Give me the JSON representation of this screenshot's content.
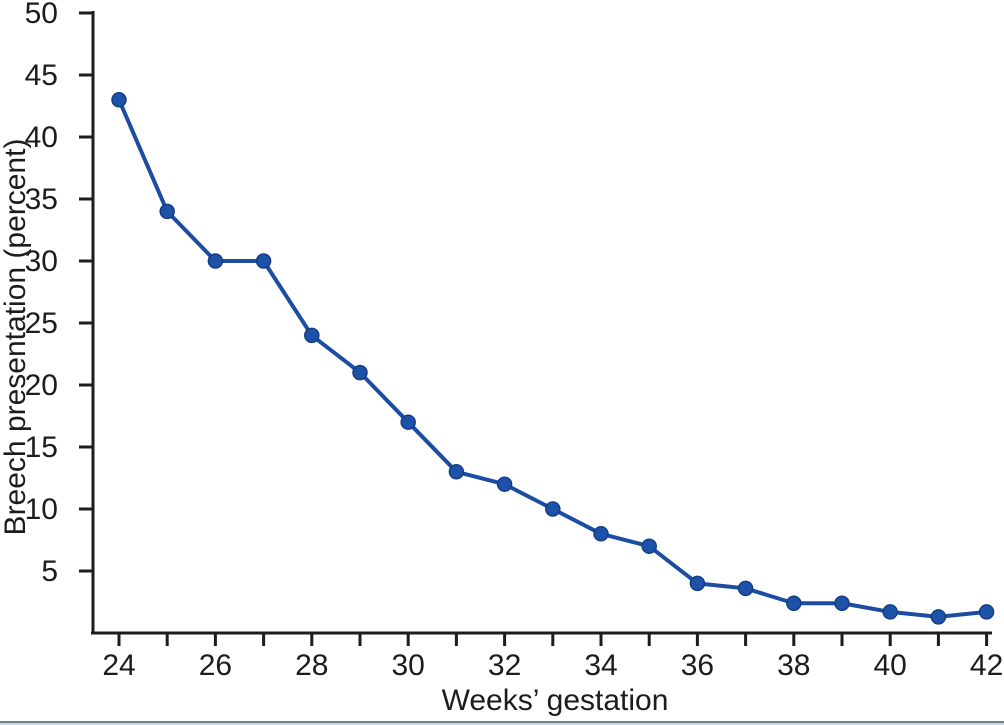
{
  "chart_data": {
    "type": "line",
    "title": "",
    "xlabel": "Weeks’ gestation",
    "ylabel": "Breech presentation (percent)",
    "x": [
      24,
      25,
      26,
      27,
      28,
      29,
      30,
      31,
      32,
      33,
      34,
      35,
      36,
      37,
      38,
      39,
      40,
      41,
      42
    ],
    "values": [
      43,
      34,
      30,
      30,
      24,
      21,
      17,
      13,
      12,
      10,
      8,
      7,
      4,
      3.6,
      2.4,
      2.4,
      1.7,
      1.3,
      1.7
    ],
    "xlim": [
      24,
      42
    ],
    "ylim": [
      0,
      50
    ],
    "y_ticks": [
      5,
      10,
      15,
      20,
      25,
      30,
      35,
      40,
      45,
      50
    ],
    "x_minor_tick_step": 1,
    "x_labeled_ticks": [
      24,
      26,
      28,
      30,
      32,
      34,
      36,
      38,
      40,
      42
    ],
    "grid": false,
    "legend": "none",
    "colors": {
      "line": "#1c4da2",
      "marker_fill": "#1e52a8",
      "marker_edge": "#143e84",
      "axis": "#1c1c1c",
      "bottom_rule": "#73818d"
    }
  }
}
